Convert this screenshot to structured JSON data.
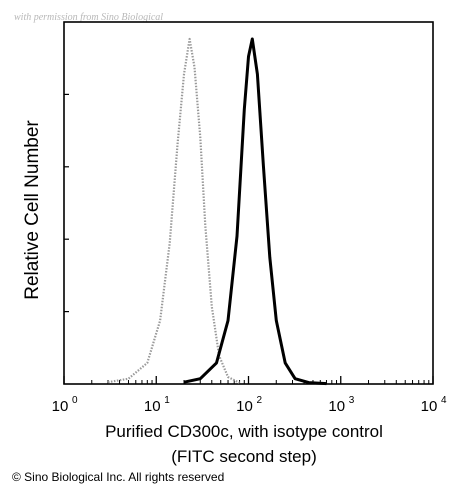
{
  "watermark": "with permission from Sino Biological",
  "copyright": "© Sino Biological Inc. All rights reserved",
  "chart_data": {
    "type": "line",
    "title": "",
    "xlabel": "Purified CD300c, with isotype control",
    "xlabel_line2": "(FITC second step)",
    "ylabel": "Relative Cell Number",
    "xscale": "log",
    "xlim": [
      1,
      10000
    ],
    "ylim": [
      0,
      1
    ],
    "x_ticks": [
      {
        "base": "10",
        "exp": "0"
      },
      {
        "base": "10",
        "exp": "1"
      },
      {
        "base": "10",
        "exp": "2"
      },
      {
        "base": "10",
        "exp": "3"
      },
      {
        "base": "10",
        "exp": "4"
      }
    ],
    "grid": false,
    "legend": "none",
    "series": [
      {
        "style": "dotted",
        "color": "#9a9a9a",
        "x": [
          3,
          5,
          8,
          11,
          14,
          17,
          20,
          23,
          26,
          30,
          34,
          40,
          48,
          60,
          80
        ],
        "y": [
          0.005,
          0.015,
          0.06,
          0.18,
          0.4,
          0.68,
          0.88,
          0.98,
          0.9,
          0.7,
          0.45,
          0.22,
          0.08,
          0.02,
          0.003
        ]
      },
      {
        "style": "solid",
        "color": "#000000",
        "x": [
          20,
          30,
          45,
          60,
          75,
          90,
          100,
          110,
          125,
          145,
          170,
          200,
          250,
          320,
          450,
          700
        ],
        "y": [
          0.005,
          0.015,
          0.06,
          0.18,
          0.42,
          0.78,
          0.93,
          0.98,
          0.88,
          0.62,
          0.36,
          0.18,
          0.06,
          0.015,
          0.004,
          0.001
        ]
      }
    ]
  }
}
